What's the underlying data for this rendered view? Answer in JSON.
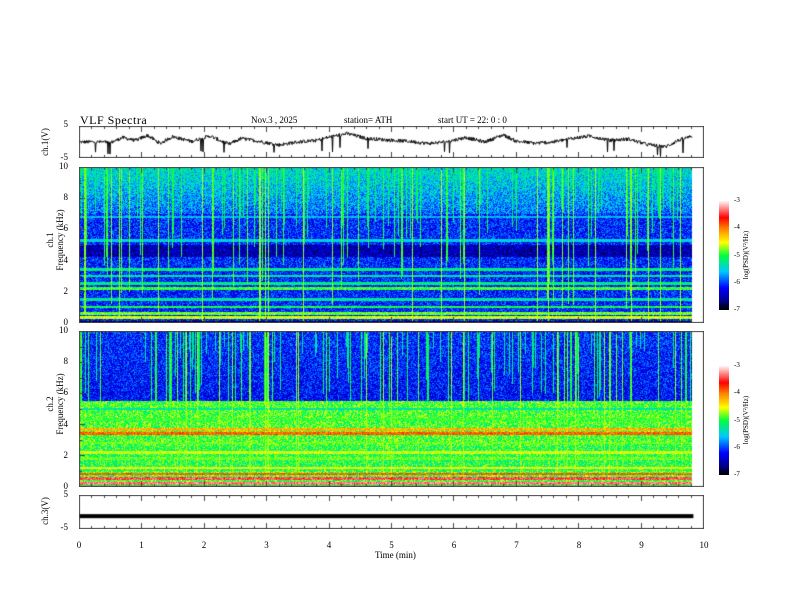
{
  "header": {
    "title": "VLF  Spectra",
    "date": "Nov.3  , 2025",
    "station": "station= ATH",
    "start_ut": "start  UT  =   22: 0  : 0"
  },
  "chart_data": [
    {
      "type": "line",
      "name": "ch1-waveform",
      "ylabel": "ch.1(V)",
      "ylim": [
        -5,
        5
      ],
      "yticks": [
        "5",
        "-5"
      ],
      "xlim": [
        0,
        10
      ],
      "data_end_min": 9.83,
      "profile_min": [
        0,
        0.4,
        0.5,
        0.7,
        0.9,
        1.1,
        1.3,
        1.5,
        1.8,
        2.1,
        2.4,
        2.6,
        2.9,
        3.2,
        3.5,
        3.8,
        4.0,
        4.3,
        4.6,
        5.0,
        5.3,
        5.6,
        5.9,
        6.2,
        6.5,
        6.8,
        7.0,
        7.3,
        7.6,
        7.9,
        8.2,
        8.5,
        8.8,
        9.1,
        9.4,
        9.6,
        9.83
      ],
      "profile_v": [
        0,
        0,
        -0.3,
        1.5,
        0.5,
        2.2,
        -0.5,
        1.8,
        0.2,
        2.0,
        -0.8,
        1.2,
        0.2,
        -1.0,
        0.0,
        0.5,
        1.6,
        2.8,
        1.2,
        0.6,
        0.2,
        -0.5,
        0.1,
        1.5,
        0.0,
        2.4,
        0.3,
        -0.4,
        0.0,
        1.2,
        2.0,
        0.5,
        1.0,
        -0.8,
        -1.6,
        0.5,
        2.0
      ]
    },
    {
      "type": "heatmap",
      "name": "ch1-spectrogram",
      "ylabel_1": "ch.1",
      "ylabel_2": "Frequency  (kHz)",
      "ylim": [
        0,
        10
      ],
      "yticks": [
        "0",
        "2",
        "4",
        "6",
        "8",
        "10"
      ],
      "xlim": [
        0,
        10
      ],
      "colorbar": {
        "label": "log(PSD)(V²/Hz)",
        "range": [
          -7,
          -3
        ],
        "ticks": [
          "-3",
          "-4",
          "-5",
          "-6",
          "-7"
        ]
      },
      "background_level": -6.1,
      "upper_level": -5.4,
      "bands_khz_level": [
        [
          0.3,
          -4.6
        ],
        [
          0.6,
          -4.8
        ],
        [
          1.0,
          -5.0
        ],
        [
          1.5,
          -5.3
        ],
        [
          2.2,
          -4.9
        ],
        [
          2.5,
          -5.2
        ],
        [
          3.0,
          -5.3
        ],
        [
          3.4,
          -5.2
        ],
        [
          5.3,
          -5.5
        ],
        [
          6.8,
          -5.6
        ]
      ],
      "dark_band_khz": [
        0.15,
        4.2,
        5.0
      ]
    },
    {
      "type": "heatmap",
      "name": "ch2-spectrogram",
      "ylabel_1": "ch.2",
      "ylabel_2": "Frequency  (kHz)",
      "ylim": [
        0,
        10
      ],
      "yticks": [
        "0",
        "2",
        "4",
        "6",
        "8",
        "10"
      ],
      "xlim": [
        0,
        10
      ],
      "colorbar": {
        "label": "log(PSD)(V²/Hz)",
        "range": [
          -7,
          -3
        ],
        "ticks": [
          "-3",
          "-4",
          "-5",
          "-6",
          "-7"
        ]
      },
      "background_level": -6.0,
      "bands_khz_level": [
        [
          0.2,
          -3.3
        ],
        [
          0.5,
          -3.4
        ],
        [
          0.8,
          -3.9
        ],
        [
          1.2,
          -4.5
        ],
        [
          1.8,
          -4.8
        ],
        [
          2.2,
          -4.6
        ],
        [
          2.8,
          -4.8
        ],
        [
          3.4,
          -3.9
        ],
        [
          3.7,
          -4.2
        ],
        [
          4.3,
          -4.9
        ],
        [
          5.0,
          -5.3
        ]
      ]
    },
    {
      "type": "line",
      "name": "ch3-waveform",
      "ylabel": "ch.3(V)",
      "ylim": [
        -5,
        5
      ],
      "yticks": [
        "5",
        "-5"
      ],
      "xlim": [
        0,
        10
      ],
      "constant_v": -1.3
    }
  ],
  "xaxis": {
    "label": "Time  (min)",
    "ticks": [
      "0",
      "1",
      "2",
      "3",
      "4",
      "5",
      "6",
      "7",
      "8",
      "9",
      "10"
    ]
  }
}
